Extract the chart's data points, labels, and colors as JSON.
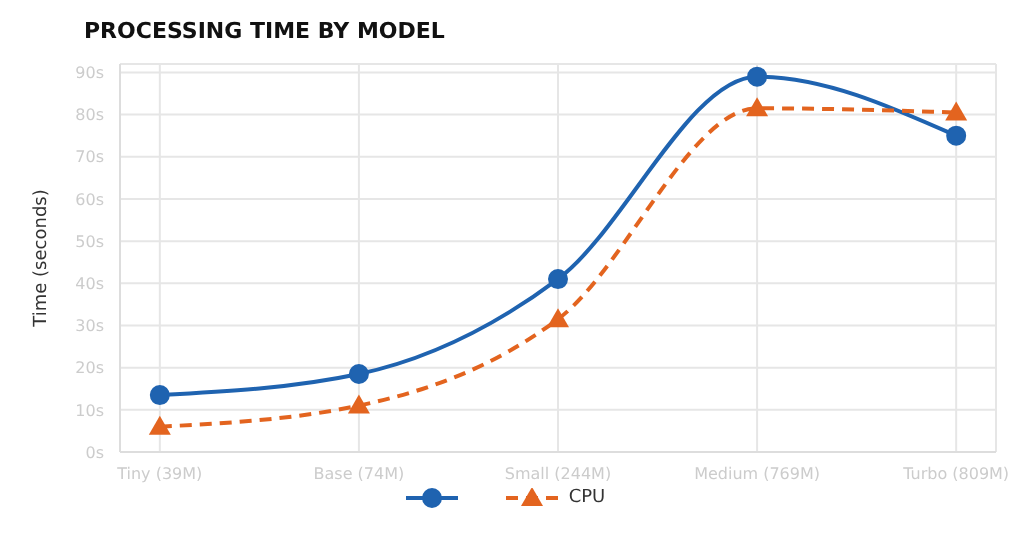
{
  "chart_data": {
    "type": "line",
    "title": "PROCESSING TIME BY MODEL",
    "ylabel": "Time (seconds)",
    "categories": [
      "Tiny (39M)",
      "Base (74M)",
      "Small (244M)",
      "Medium (769M)",
      "Turbo (809M)"
    ],
    "series": [
      {
        "color": "#1f63b0",
        "values": [
          13.5,
          18.5,
          41,
          89,
          75
        ],
        "marker": "circle",
        "line_style": "solid"
      },
      {
        "name": "CPU",
        "color": "#e3641f",
        "values": [
          6,
          11,
          31.5,
          81.5,
          80.5
        ],
        "marker": "triangle",
        "line_style": "dashed"
      }
    ],
    "ylim": [
      0,
      92
    ],
    "yticks": [
      {
        "value": 0,
        "label": "0s"
      },
      {
        "value": 10,
        "label": "10s"
      },
      {
        "value": 20,
        "label": "20s"
      },
      {
        "value": 30,
        "label": "30s"
      },
      {
        "value": 40,
        "label": "40s"
      },
      {
        "value": 50,
        "label": "50s"
      },
      {
        "value": 60,
        "label": "60s"
      },
      {
        "value": 70,
        "label": "70s"
      },
      {
        "value": 80,
        "label": "80s"
      },
      {
        "value": 90,
        "label": "90s"
      }
    ],
    "grid": true,
    "legend": "bottom"
  }
}
